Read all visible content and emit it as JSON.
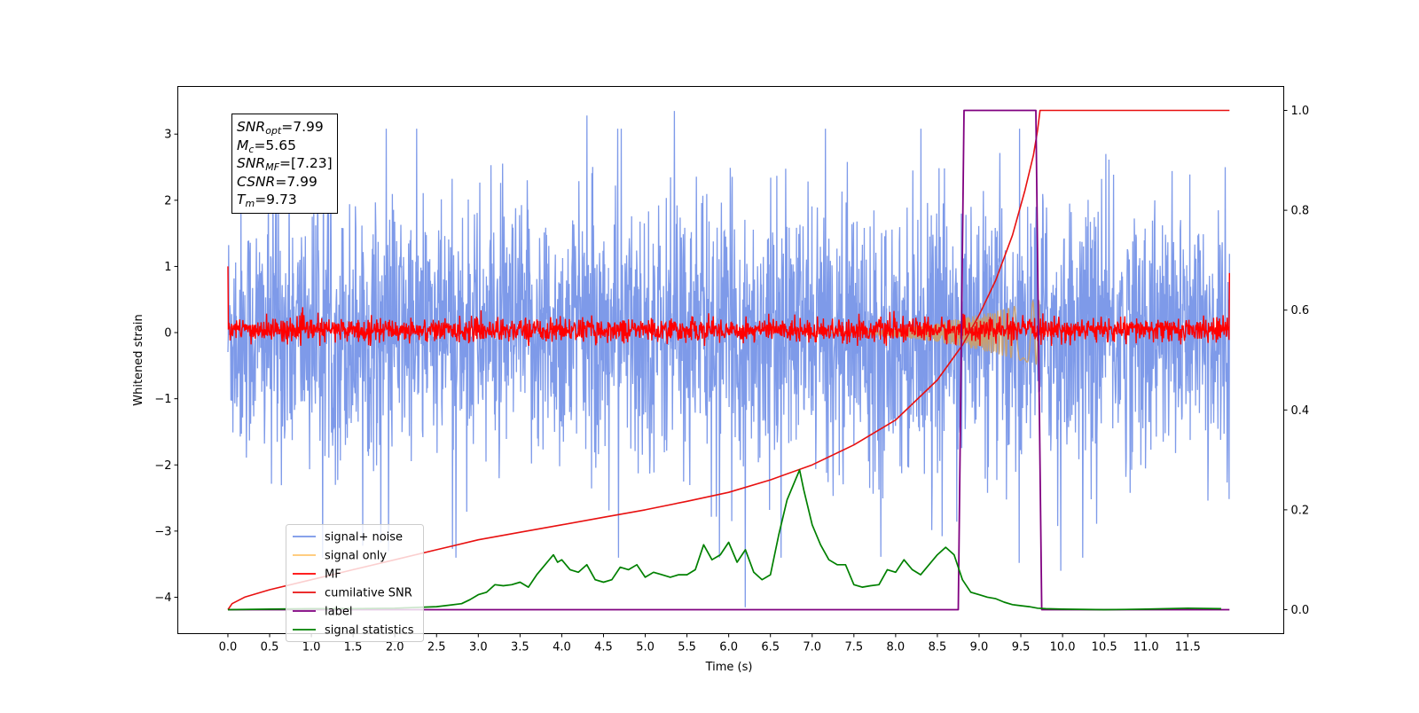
{
  "chart_data": {
    "type": "line",
    "xlabel": "Time (s)",
    "ylabel_left": "Whitened strain",
    "ylabel_right": "",
    "xlim": [
      -0.6,
      12.65
    ],
    "ylim_left": [
      -4.55,
      3.72
    ],
    "ylim_right": [
      -0.048,
      1.048
    ],
    "x_ticks": [
      "0.0",
      "0.5",
      "1.0",
      "1.5",
      "2.0",
      "2.5",
      "3.0",
      "3.5",
      "4.0",
      "4.5",
      "5.0",
      "5.5",
      "6.0",
      "6.5",
      "7.0",
      "7.5",
      "8.0",
      "8.5",
      "9.0",
      "9.5",
      "10.0",
      "10.5",
      "11.0",
      "11.5"
    ],
    "x_tick_values": [
      0.0,
      0.5,
      1.0,
      1.5,
      2.0,
      2.5,
      3.0,
      3.5,
      4.0,
      4.5,
      5.0,
      5.5,
      6.0,
      6.5,
      7.0,
      7.5,
      8.0,
      8.5,
      9.0,
      9.5,
      10.0,
      10.5,
      11.0,
      11.5
    ],
    "y_ticks_left": [
      "−4",
      "−3",
      "−2",
      "−1",
      "0",
      "1",
      "2",
      "3"
    ],
    "y_tick_values_left": [
      -4,
      -3,
      -2,
      -1,
      0,
      1,
      2,
      3
    ],
    "y_ticks_right": [
      "0.0",
      "0.2",
      "0.4",
      "0.6",
      "0.8",
      "1.0"
    ],
    "y_tick_values_right": [
      0.0,
      0.2,
      0.4,
      0.6,
      0.8,
      1.0
    ],
    "grid": false,
    "legend_position": "lower-left",
    "series": [
      {
        "name": "signal+ noise",
        "axis": "left",
        "color": "#7795e8",
        "style": "noise",
        "x_range": [
          0.0,
          12.0
        ],
        "typical_range": [
          -1.7,
          1.7
        ],
        "extremes": [
          -4.15,
          3.35
        ],
        "notable_points": [
          {
            "x": 5.35,
            "y": 3.35
          },
          {
            "x": 4.3,
            "y": 3.28
          },
          {
            "x": 6.2,
            "y": -4.15
          },
          {
            "x": 9.48,
            "y": -3.48
          },
          {
            "x": 9.98,
            "y": -3.6
          }
        ]
      },
      {
        "name": "signal only",
        "axis": "left",
        "color": "#ffc66e",
        "style": "chirp",
        "x_range": [
          7.2,
          9.73
        ],
        "peak_amplitude": 0.5
      },
      {
        "name": "MF",
        "axis": "left",
        "color": "#ff0000",
        "style": "noise",
        "x_range": [
          0.0,
          12.0
        ],
        "typical_range": [
          -0.2,
          0.3
        ],
        "edge_values": [
          1.0,
          0.9
        ]
      },
      {
        "name": "cumilative SNR",
        "axis": "right",
        "color": "#e81010",
        "x": [
          0.0,
          0.05,
          0.2,
          0.5,
          1.0,
          1.5,
          2.0,
          2.5,
          3.0,
          3.5,
          4.0,
          4.5,
          5.0,
          5.5,
          6.0,
          6.5,
          7.0,
          7.5,
          8.0,
          8.5,
          8.8,
          9.0,
          9.2,
          9.4,
          9.55,
          9.65,
          9.7,
          9.73,
          12.0
        ],
        "values": [
          0.0,
          0.012,
          0.025,
          0.04,
          0.06,
          0.08,
          0.1,
          0.12,
          0.14,
          0.155,
          0.17,
          0.185,
          0.2,
          0.217,
          0.235,
          0.26,
          0.29,
          0.33,
          0.38,
          0.46,
          0.53,
          0.59,
          0.66,
          0.75,
          0.84,
          0.91,
          0.96,
          1.0,
          1.0
        ]
      },
      {
        "name": "label",
        "axis": "right",
        "color": "#800080",
        "x": [
          0.0,
          8.75,
          8.82,
          9.68,
          9.75,
          12.0
        ],
        "values": [
          0.0,
          0.0,
          1.0,
          1.0,
          0.0,
          0.0
        ]
      },
      {
        "name": "signal statistics",
        "axis": "right",
        "color": "#008000",
        "x": [
          0.0,
          0.5,
          1.0,
          1.5,
          2.0,
          2.5,
          2.8,
          2.9,
          3.0,
          3.1,
          3.2,
          3.3,
          3.4,
          3.5,
          3.6,
          3.7,
          3.8,
          3.9,
          3.95,
          4.0,
          4.1,
          4.2,
          4.3,
          4.4,
          4.5,
          4.6,
          4.7,
          4.8,
          4.9,
          5.0,
          5.1,
          5.2,
          5.3,
          5.4,
          5.5,
          5.6,
          5.7,
          5.8,
          5.9,
          6.0,
          6.1,
          6.2,
          6.3,
          6.4,
          6.5,
          6.6,
          6.7,
          6.8,
          6.85,
          6.9,
          7.0,
          7.1,
          7.2,
          7.3,
          7.4,
          7.5,
          7.6,
          7.7,
          7.8,
          7.9,
          8.0,
          8.1,
          8.2,
          8.3,
          8.4,
          8.5,
          8.6,
          8.7,
          8.8,
          8.9,
          9.0,
          9.1,
          9.2,
          9.3,
          9.4,
          9.5,
          9.6,
          9.7,
          9.8,
          10.0,
          10.5,
          11.0,
          11.5,
          11.9
        ],
        "values": [
          0.0,
          0.001,
          0.002,
          0.002,
          0.003,
          0.006,
          0.012,
          0.02,
          0.03,
          0.035,
          0.05,
          0.048,
          0.05,
          0.055,
          0.045,
          0.07,
          0.09,
          0.11,
          0.095,
          0.1,
          0.08,
          0.075,
          0.09,
          0.06,
          0.055,
          0.06,
          0.085,
          0.08,
          0.09,
          0.065,
          0.075,
          0.07,
          0.065,
          0.07,
          0.07,
          0.08,
          0.13,
          0.1,
          0.11,
          0.135,
          0.095,
          0.12,
          0.075,
          0.06,
          0.07,
          0.15,
          0.22,
          0.26,
          0.28,
          0.24,
          0.17,
          0.13,
          0.1,
          0.09,
          0.09,
          0.05,
          0.045,
          0.048,
          0.05,
          0.08,
          0.075,
          0.1,
          0.08,
          0.07,
          0.09,
          0.11,
          0.125,
          0.11,
          0.06,
          0.035,
          0.03,
          0.025,
          0.022,
          0.015,
          0.01,
          0.008,
          0.006,
          0.003,
          0.002,
          0.001,
          0.0,
          0.001,
          0.003,
          0.002
        ]
      }
    ],
    "annotation": {
      "lines": [
        {
          "sym": "SNR",
          "sub": "opt",
          "val": "=7.99"
        },
        {
          "sym": "M",
          "sub": "c",
          "val": "=5.65"
        },
        {
          "sym": "SNR",
          "sub": "MF",
          "val": "=[7.23]"
        },
        {
          "sym": "CSNR",
          "sub": "",
          "val": "=7.99"
        },
        {
          "sym": "T",
          "sub": "m",
          "val": "=9.73"
        }
      ]
    },
    "legend": [
      "signal+ noise",
      "signal only",
      "MF",
      "cumilative SNR",
      "label",
      "signal statistics"
    ]
  }
}
